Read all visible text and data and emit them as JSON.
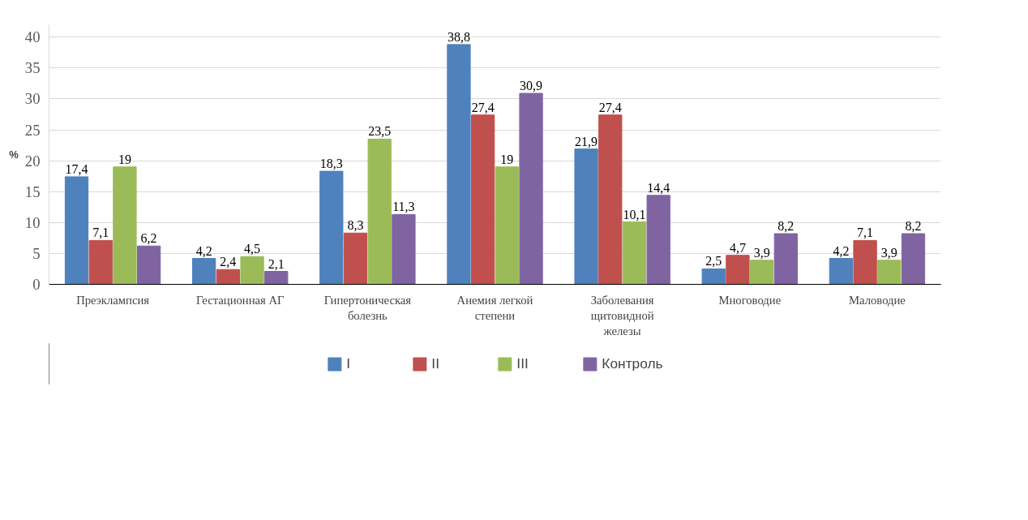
{
  "chart_data": {
    "type": "bar",
    "ylabel": "%",
    "categories": [
      "Преэклампсия",
      "Гестационная АГ",
      "Гипертоническая болезнь",
      "Анемия легкой степени",
      "Заболевания щитовидной железы",
      "Многоводие",
      "Маловодие"
    ],
    "series": [
      {
        "name": "I",
        "color": "#4f81bd",
        "values": [
          17.4,
          4.2,
          18.3,
          38.8,
          21.9,
          2.5,
          4.2
        ],
        "value_labels": [
          "17,4",
          "4,2",
          "18,3",
          "38,8",
          "21,9",
          "2,5",
          "4,2"
        ]
      },
      {
        "name": "II",
        "color": "#c0504d",
        "values": [
          7.1,
          2.4,
          8.3,
          27.4,
          27.4,
          4.7,
          7.1
        ],
        "value_labels": [
          "7,1",
          "2,4",
          "8,3",
          "27,4",
          "27,4",
          "4,7",
          "7,1"
        ]
      },
      {
        "name": "III",
        "color": "#9bbb59",
        "values": [
          19,
          4.5,
          23.5,
          19,
          10.1,
          3.9,
          3.9
        ],
        "value_labels": [
          "19",
          "4,5",
          "23,5",
          "19",
          "10,1",
          "3,9",
          "3,9"
        ]
      },
      {
        "name": "Контроль",
        "color": "#8064a2",
        "values": [
          6.2,
          2.1,
          11.3,
          30.9,
          14.4,
          8.2,
          8.2
        ],
        "value_labels": [
          "6,2",
          "2,1",
          "11,3",
          "30,9",
          "14,4",
          "8,2",
          "8,2"
        ]
      }
    ],
    "ylim": [
      0,
      42
    ],
    "yticks": [
      0,
      5,
      10,
      15,
      20,
      25,
      30,
      35,
      40
    ],
    "grid": "y",
    "legend": "bottom"
  }
}
